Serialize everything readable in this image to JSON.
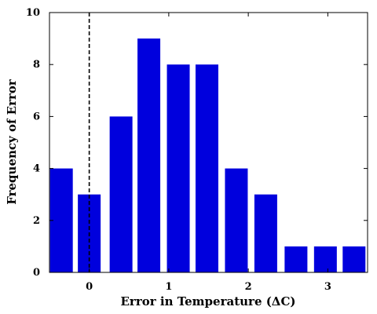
{
  "chart_data": {
    "type": "bar",
    "title": "",
    "xlabel": "Error in Temperature (ΔC)",
    "ylabel": "Frequency of Error",
    "x": [
      -0.35,
      0.0,
      0.4,
      0.75,
      1.12,
      1.48,
      1.85,
      2.22,
      2.6,
      2.97,
      3.33
    ],
    "values": [
      4,
      3,
      6,
      9,
      8,
      8,
      4,
      3,
      1,
      1,
      1
    ],
    "xlim": [
      -0.5,
      3.5
    ],
    "ylim": [
      0,
      10
    ],
    "xticks": [
      0,
      1,
      2,
      3
    ],
    "yticks": [
      0,
      2,
      4,
      6,
      8,
      10
    ],
    "bar_color": "#0000dd",
    "reference_line": {
      "x": 0,
      "style": "dashed",
      "color": "#000000"
    },
    "grid": false,
    "legend": "none"
  }
}
